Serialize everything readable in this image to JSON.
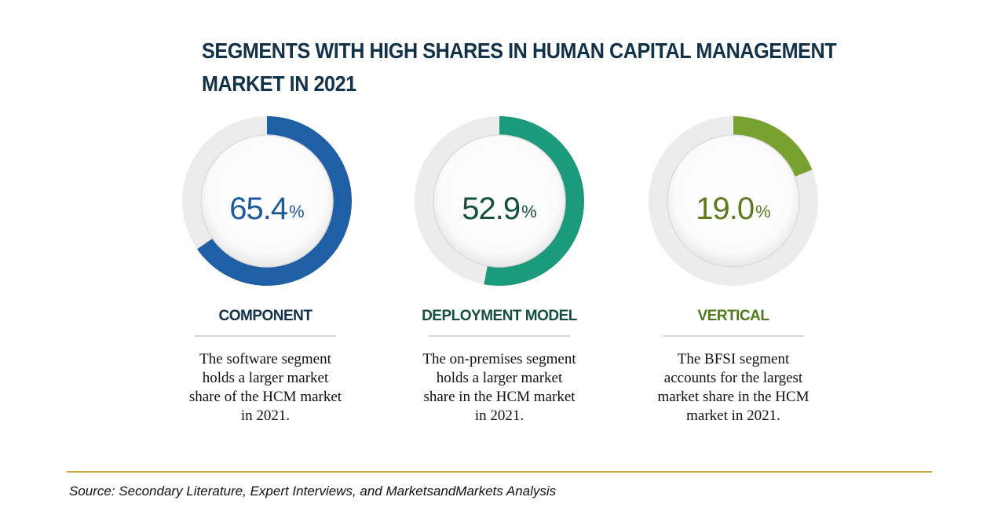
{
  "chart_data": {
    "type": "pie",
    "title": "SEGMENTS WITH HIGH SHARES IN HUMAN CAPITAL MANAGEMENT MARKET IN 2021",
    "segments": [
      {
        "category": "COMPONENT",
        "value": 65.4,
        "value_label": "65.4",
        "unit": "%",
        "color": "#1f5fa6",
        "description": "The software segment holds a larger market share of the HCM market in 2021."
      },
      {
        "category": "DEPLOYMENT MODEL",
        "value": 52.9,
        "value_label": "52.9",
        "unit": "%",
        "color": "#1b9b7c",
        "description": "The on-premises segment holds a larger market share in the HCM market in 2021."
      },
      {
        "category": "VERTICAL",
        "value": 19.0,
        "value_label": "19.0",
        "unit": "%",
        "color": "#78a22f",
        "description": "The BFSI segment accounts for the largest market share in the HCM market in 2021."
      }
    ]
  },
  "colors": {
    "title": "#12324a",
    "component_text": "#1d5a9c",
    "deployment_text": "#14503f",
    "vertical_text": "#5d7a1f",
    "ring_track": "#e9e9e9"
  },
  "source": "Source: Secondary Literature, Expert Interviews, and MarketsandMarkets Analysis"
}
